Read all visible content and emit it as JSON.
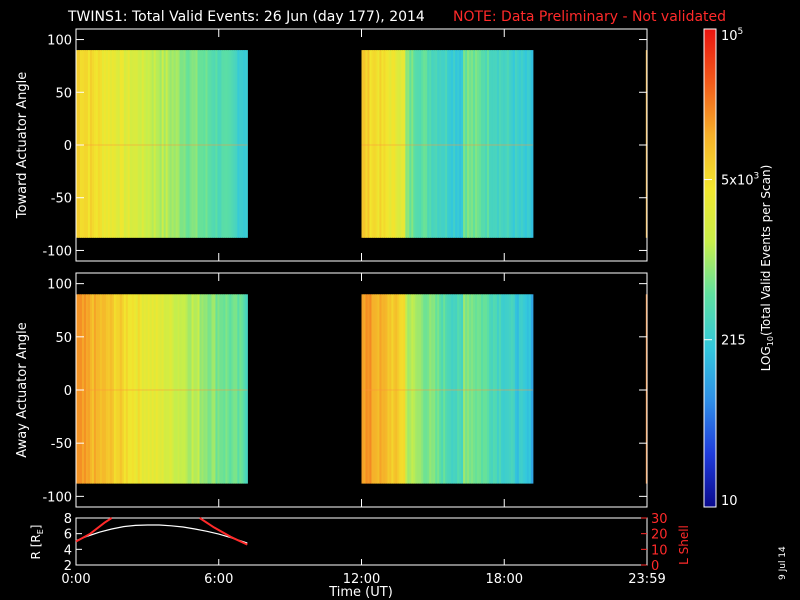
{
  "title": {
    "main": "TWINS1: Total Valid Events: 26 Jun (day 177), 2014",
    "note": "NOTE: Data Preliminary - Not validated"
  },
  "date_stamp": "9 Jul 14",
  "colors": {
    "background": "#000000",
    "foreground": "#ffffff",
    "note_red": "#ff2a2a",
    "colormap": [
      "#0a0a8c",
      "#1f3cdc",
      "#2f8ee6",
      "#33c8dc",
      "#5fe0a0",
      "#c8ee4a",
      "#f2e62e",
      "#f5b02a",
      "#f25a1a",
      "#e81410"
    ]
  },
  "chart_data": [
    {
      "type": "heatmap",
      "ylabel": "Toward Actuator Angle",
      "ylim": [
        -110,
        110
      ],
      "yticks": [
        "-100",
        "-50",
        "0",
        "50",
        "100"
      ],
      "xlim_hours": [
        0,
        24
      ],
      "data_extent_y": [
        -88,
        90
      ],
      "blocks": [
        {
          "start_h": 0.0,
          "end_h": 7.2,
          "level_start": 0.72,
          "level_end": 0.36
        },
        {
          "start_h": 12.0,
          "end_h": 19.2,
          "level_start": 0.72,
          "level_end": 0.32
        },
        {
          "start_h": 23.95,
          "end_h": 24.0,
          "level_start": 0.78,
          "level_end": 0.78
        }
      ]
    },
    {
      "type": "heatmap",
      "ylabel": "Away Actuator Angle",
      "ylim": [
        -110,
        110
      ],
      "yticks": [
        "-100",
        "-50",
        "0",
        "50",
        "100"
      ],
      "xlim_hours": [
        0,
        24
      ],
      "data_extent_y": [
        -88,
        90
      ],
      "blocks": [
        {
          "start_h": 0.0,
          "end_h": 7.2,
          "level_start": 0.8,
          "level_end": 0.42
        },
        {
          "start_h": 12.0,
          "end_h": 19.2,
          "level_start": 0.82,
          "level_end": 0.3
        },
        {
          "start_h": 23.95,
          "end_h": 24.0,
          "level_start": 0.85,
          "level_end": 0.85
        }
      ]
    },
    {
      "type": "line",
      "ylabel": "R [R",
      "ylabel_sub": "E",
      "ylabel_close": "]",
      "ylim": [
        2,
        8
      ],
      "yticks": [
        "2",
        "4",
        "6",
        "8"
      ],
      "y2label": "L Shell",
      "y2lim": [
        0,
        30
      ],
      "y2ticks": [
        "0",
        "10",
        "20",
        "30"
      ],
      "xlabel": "Time (UT)",
      "xticks": [
        "0:00",
        "6:00",
        "12:00",
        "18:00",
        "23:59"
      ],
      "xtick_hours": [
        0,
        6,
        12,
        18,
        24
      ],
      "series": [
        {
          "axis": "R",
          "color": "#ffffff",
          "x": [
            0,
            0.5,
            1,
            1.5,
            2,
            2.5,
            3,
            3.5,
            4,
            4.5,
            5,
            5.5,
            6,
            6.5,
            7,
            7.2
          ],
          "y": [
            5.1,
            5.7,
            6.2,
            6.6,
            6.9,
            7.05,
            7.1,
            7.1,
            7.0,
            6.85,
            6.6,
            6.3,
            5.95,
            5.5,
            5.0,
            4.8
          ]
        },
        {
          "axis": "L",
          "color": "#ff2a2a",
          "x": [
            0,
            0.6,
            1.2,
            1.5
          ],
          "y": [
            15,
            20,
            27,
            31
          ]
        },
        {
          "axis": "L",
          "color": "#ff2a2a",
          "x": [
            5.2,
            5.8,
            6.5,
            7.2
          ],
          "y": [
            31,
            24,
            18,
            13
          ]
        }
      ]
    }
  ],
  "colorbar": {
    "label_prefix": "LOG",
    "label_sub": "10",
    "label_rest": "(Total Valid Events per Scan)",
    "ticks": [
      {
        "base": "10",
        "exp": "5",
        "level": 1.0
      },
      {
        "base": "5x10",
        "exp": "3",
        "level": 0.685
      },
      {
        "base": "215",
        "exp": "",
        "level": 0.35
      },
      {
        "base": "10",
        "exp": "",
        "level": 0.0
      }
    ]
  }
}
